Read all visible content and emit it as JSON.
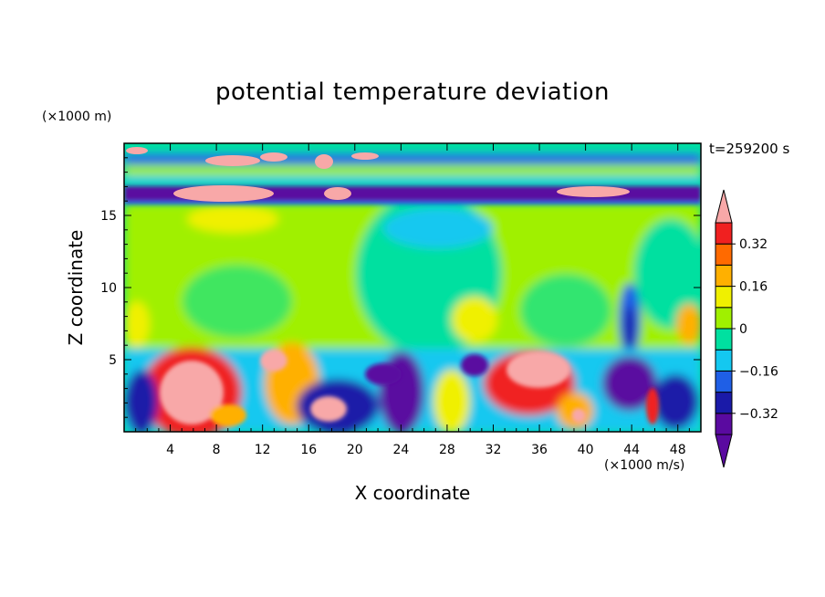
{
  "chart_data": {
    "type": "heatmap",
    "title": "potential temperature deviation",
    "xlabel": "X coordinate",
    "ylabel": "Z coordinate",
    "x_unit": "(×1000 m/s)",
    "y_unit": "(×1000 m)",
    "time_label": "t=259200 s",
    "xlim": [
      0,
      50
    ],
    "ylim": [
      0,
      20
    ],
    "x_ticks": [
      4,
      8,
      12,
      16,
      20,
      24,
      28,
      32,
      36,
      40,
      44,
      48
    ],
    "y_ticks": [
      5,
      10,
      15
    ],
    "colorbar": {
      "labels": [
        "0.32",
        "0.16",
        "0",
        "−0.16",
        "−0.32"
      ],
      "label_values": [
        0.32,
        0.16,
        0,
        -0.16,
        -0.32
      ],
      "levels": [
        -0.4,
        -0.32,
        -0.24,
        -0.16,
        -0.08,
        0,
        0.08,
        0.16,
        0.24,
        0.32,
        0.4
      ],
      "colors": [
        "#5a0aa0",
        "#1a1aa8",
        "#1f5fe6",
        "#14c8f0",
        "#00e0a0",
        "#a0f000",
        "#f0f000",
        "#ffb000",
        "#ff6a00",
        "#f02020",
        "#f8a8a8"
      ]
    }
  }
}
